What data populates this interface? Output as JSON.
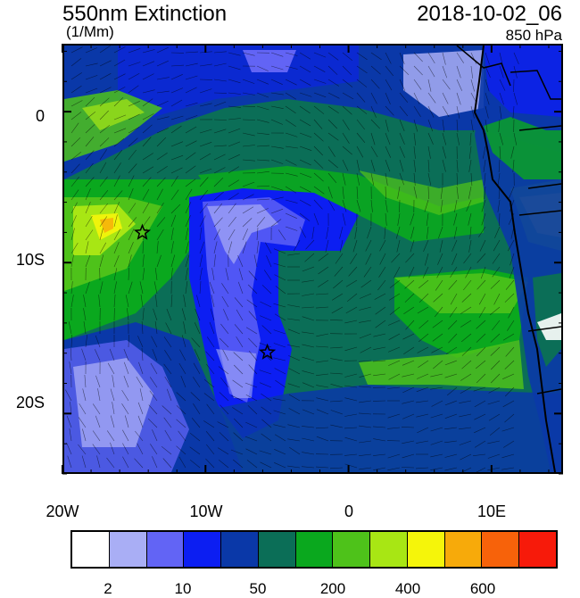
{
  "header": {
    "title": "550nm Extinction",
    "units": "(1/Mm)",
    "datetime": "2018-10-02_06",
    "level": "850 hPa"
  },
  "axes": {
    "lat_labels": [
      "0",
      "10S",
      "20S"
    ],
    "lon_labels": [
      "20W",
      "10W",
      "0",
      "10E"
    ],
    "lon_range": [
      -20,
      15
    ],
    "lat_range": [
      -24,
      4.5
    ]
  },
  "legend": {
    "colors": [
      "#ffffff",
      "#a9aef5",
      "#6264f5",
      "#0c1ef2",
      "#0a38a8",
      "#0b6e57",
      "#0aa81e",
      "#4ec21a",
      "#a8e614",
      "#f5f50a",
      "#f7aa0a",
      "#f7620a",
      "#f71a0a"
    ],
    "tick_labels": [
      "2",
      "10",
      "50",
      "200",
      "400",
      "600"
    ]
  },
  "markers": [
    {
      "name": "star-marker-1",
      "lon": -14.5,
      "lat": -8
    },
    {
      "name": "star-marker-2",
      "lon": -5.7,
      "lat": -16
    }
  ]
}
